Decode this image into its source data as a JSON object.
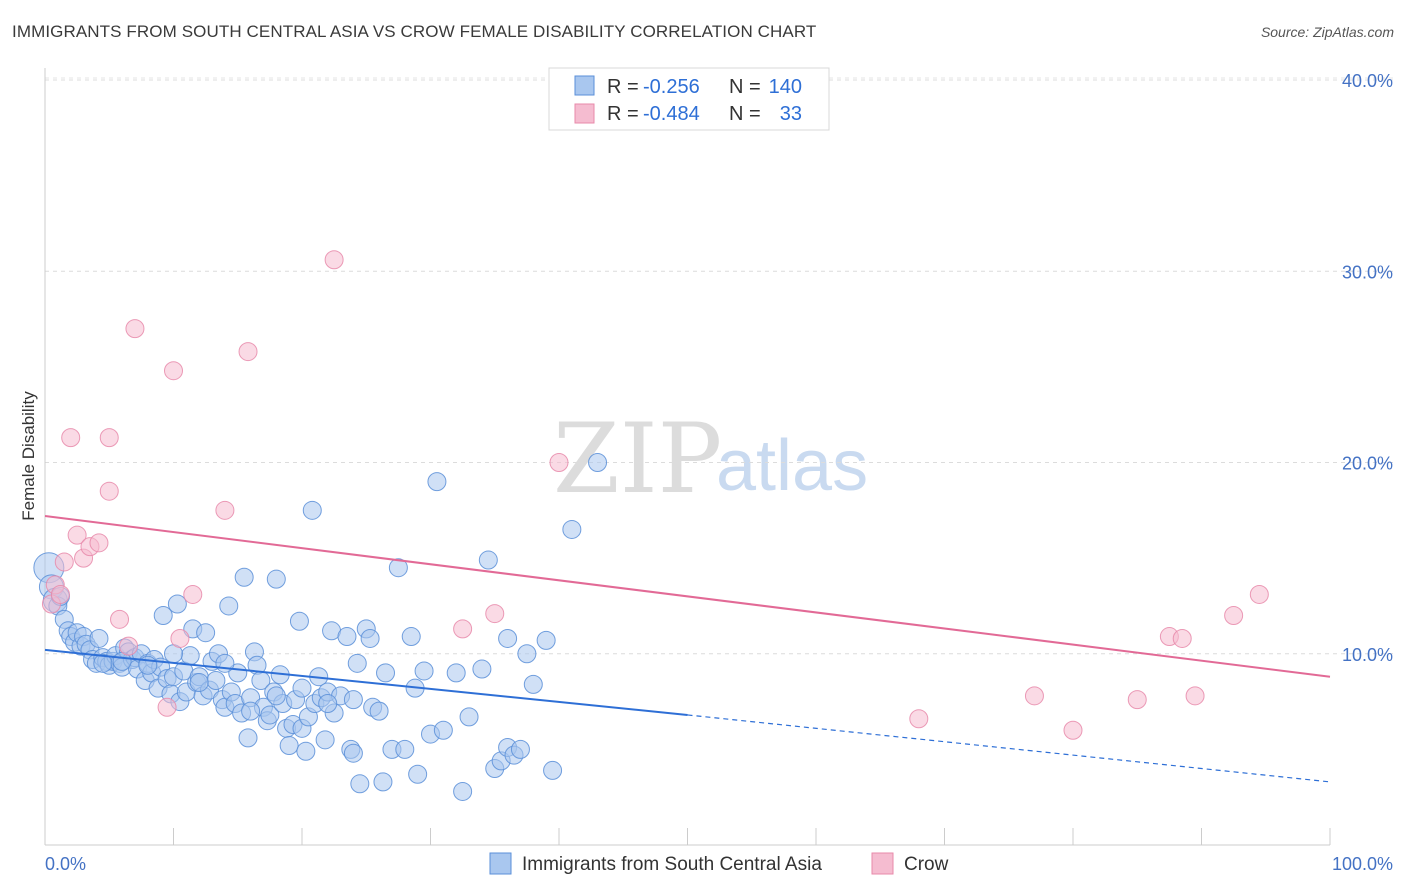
{
  "header": {
    "title": "IMMIGRANTS FROM SOUTH CENTRAL ASIA VS CROW FEMALE DISABILITY CORRELATION CHART",
    "source": "Source: ZipAtlas.com"
  },
  "watermark": {
    "zip": "ZIP",
    "atlas": "atlas"
  },
  "legend": {
    "rows": [
      {
        "r_label": "R =",
        "r_value": "-0.256",
        "n_label": "N =",
        "n_value": "140"
      },
      {
        "r_label": "R =",
        "r_value": "-0.484",
        "n_label": "N =",
        "n_value": "33"
      }
    ]
  },
  "colors": {
    "blue_fill": "#a9c7ef",
    "blue_stroke": "#5a8fd8",
    "blue_line": "#2e6fd6",
    "pink_fill": "#f5bcd0",
    "pink_stroke": "#e88aaa",
    "pink_line": "#e26a96"
  },
  "chart_data": {
    "type": "scatter",
    "title": "IMMIGRANTS FROM SOUTH CENTRAL ASIA VS CROW FEMALE DISABILITY CORRELATION CHART",
    "xlabel": "",
    "ylabel": "Female Disability",
    "xlim": [
      0,
      100
    ],
    "ylim": [
      0,
      40
    ],
    "x_tick_labels": [
      "0.0%",
      "100.0%"
    ],
    "y_ticks": [
      10,
      20,
      30,
      40
    ],
    "y_tick_labels": [
      "10.0%",
      "20.0%",
      "30.0%",
      "40.0%"
    ],
    "grid": true,
    "legend_position": "top-center",
    "series": [
      {
        "name": "Immigrants from South Central Asia",
        "R": -0.256,
        "N": 140,
        "trend": {
          "x": [
            0,
            50
          ],
          "y": [
            10.2,
            6.8
          ],
          "dashed_to": [
            100,
            3.3
          ]
        },
        "points": [
          [
            0.3,
            14.5
          ],
          [
            0.5,
            13.5
          ],
          [
            0.8,
            12.8
          ],
          [
            1.0,
            12.5
          ],
          [
            1.2,
            13.0
          ],
          [
            1.5,
            11.8
          ],
          [
            1.8,
            11.2
          ],
          [
            2.0,
            10.9
          ],
          [
            2.3,
            10.6
          ],
          [
            2.5,
            11.1
          ],
          [
            2.8,
            10.4
          ],
          [
            3.0,
            10.9
          ],
          [
            3.2,
            10.5
          ],
          [
            3.5,
            10.2
          ],
          [
            3.7,
            9.7
          ],
          [
            4.0,
            9.5
          ],
          [
            4.2,
            10.8
          ],
          [
            4.5,
            9.8
          ],
          [
            4.8,
            9.6
          ],
          [
            5.0,
            9.4
          ],
          [
            5.3,
            9.6
          ],
          [
            5.5,
            9.9
          ],
          [
            5.8,
            9.5
          ],
          [
            6.0,
            9.3
          ],
          [
            6.2,
            10.3
          ],
          [
            6.5,
            10.1
          ],
          [
            6.8,
            9.7
          ],
          [
            7.0,
            9.8
          ],
          [
            7.2,
            9.2
          ],
          [
            7.5,
            10.0
          ],
          [
            7.8,
            8.6
          ],
          [
            8.0,
            9.5
          ],
          [
            8.3,
            9.0
          ],
          [
            8.5,
            9.7
          ],
          [
            8.8,
            8.2
          ],
          [
            9.0,
            9.3
          ],
          [
            9.2,
            12.0
          ],
          [
            9.5,
            8.7
          ],
          [
            9.8,
            7.9
          ],
          [
            10.0,
            8.8
          ],
          [
            10.3,
            12.6
          ],
          [
            10.5,
            7.5
          ],
          [
            10.8,
            9.1
          ],
          [
            11.0,
            8.0
          ],
          [
            11.3,
            9.9
          ],
          [
            11.5,
            11.3
          ],
          [
            11.8,
            8.5
          ],
          [
            12.0,
            8.8
          ],
          [
            12.3,
            7.8
          ],
          [
            12.5,
            11.1
          ],
          [
            12.8,
            8.1
          ],
          [
            13.0,
            9.6
          ],
          [
            13.3,
            8.6
          ],
          [
            13.5,
            10.0
          ],
          [
            13.8,
            7.6
          ],
          [
            14.0,
            7.2
          ],
          [
            14.3,
            12.5
          ],
          [
            14.5,
            8.0
          ],
          [
            14.8,
            7.4
          ],
          [
            15.0,
            9.0
          ],
          [
            15.3,
            6.9
          ],
          [
            15.5,
            14.0
          ],
          [
            15.8,
            5.6
          ],
          [
            16.0,
            7.7
          ],
          [
            16.3,
            10.1
          ],
          [
            16.5,
            9.4
          ],
          [
            16.8,
            8.6
          ],
          [
            17.0,
            7.2
          ],
          [
            17.3,
            6.5
          ],
          [
            17.5,
            6.8
          ],
          [
            17.8,
            8.0
          ],
          [
            18.0,
            13.9
          ],
          [
            18.3,
            8.9
          ],
          [
            18.5,
            7.4
          ],
          [
            18.8,
            6.1
          ],
          [
            19.0,
            5.2
          ],
          [
            19.3,
            6.3
          ],
          [
            19.5,
            7.6
          ],
          [
            19.8,
            11.7
          ],
          [
            20.0,
            6.1
          ],
          [
            20.3,
            4.9
          ],
          [
            20.5,
            6.7
          ],
          [
            20.8,
            17.5
          ],
          [
            21.0,
            7.4
          ],
          [
            21.3,
            8.8
          ],
          [
            21.5,
            7.7
          ],
          [
            21.8,
            5.5
          ],
          [
            22.0,
            8.0
          ],
          [
            22.3,
            11.2
          ],
          [
            22.5,
            6.9
          ],
          [
            23.0,
            7.8
          ],
          [
            23.5,
            10.9
          ],
          [
            23.8,
            5.0
          ],
          [
            24.0,
            4.8
          ],
          [
            24.3,
            9.5
          ],
          [
            24.5,
            3.2
          ],
          [
            25.0,
            11.3
          ],
          [
            25.3,
            10.8
          ],
          [
            25.5,
            7.2
          ],
          [
            26.0,
            7.0
          ],
          [
            26.3,
            3.3
          ],
          [
            26.5,
            9.0
          ],
          [
            27.0,
            5.0
          ],
          [
            27.5,
            14.5
          ],
          [
            28.0,
            5.0
          ],
          [
            28.5,
            10.9
          ],
          [
            28.8,
            8.2
          ],
          [
            29.0,
            3.7
          ],
          [
            29.5,
            9.1
          ],
          [
            30.0,
            5.8
          ],
          [
            30.5,
            19.0
          ],
          [
            31.0,
            6.0
          ],
          [
            32.0,
            9.0
          ],
          [
            32.5,
            2.8
          ],
          [
            33.0,
            6.7
          ],
          [
            34.0,
            9.2
          ],
          [
            34.5,
            14.9
          ],
          [
            35.0,
            4.0
          ],
          [
            35.5,
            4.4
          ],
          [
            36.0,
            5.1
          ],
          [
            36.5,
            4.7
          ],
          [
            37.0,
            5.0
          ],
          [
            37.5,
            10.0
          ],
          [
            38.0,
            8.4
          ],
          [
            39.0,
            10.7
          ],
          [
            39.5,
            3.9
          ],
          [
            41.0,
            16.5
          ],
          [
            43.0,
            20.0
          ],
          [
            4.5,
            9.5
          ],
          [
            6.0,
            9.6
          ],
          [
            8.0,
            9.4
          ],
          [
            10.0,
            10.0
          ],
          [
            12.0,
            8.5
          ],
          [
            14.0,
            9.5
          ],
          [
            16.0,
            7.0
          ],
          [
            18.0,
            7.8
          ],
          [
            20.0,
            8.2
          ],
          [
            22.0,
            7.4
          ],
          [
            24.0,
            7.6
          ],
          [
            36.0,
            10.8
          ]
        ]
      },
      {
        "name": "Crow",
        "R": -0.484,
        "N": 33,
        "trend": {
          "x": [
            0,
            100
          ],
          "y": [
            17.2,
            8.8
          ]
        },
        "points": [
          [
            0.5,
            12.6
          ],
          [
            0.8,
            13.6
          ],
          [
            1.2,
            13.1
          ],
          [
            1.5,
            14.8
          ],
          [
            2.0,
            21.3
          ],
          [
            2.5,
            16.2
          ],
          [
            3.0,
            15.0
          ],
          [
            3.5,
            15.6
          ],
          [
            4.2,
            15.8
          ],
          [
            5.0,
            18.5
          ],
          [
            5.0,
            21.3
          ],
          [
            5.8,
            11.8
          ],
          [
            6.5,
            10.4
          ],
          [
            7.0,
            27.0
          ],
          [
            9.5,
            7.2
          ],
          [
            10.0,
            24.8
          ],
          [
            10.5,
            10.8
          ],
          [
            11.5,
            13.1
          ],
          [
            14.0,
            17.5
          ],
          [
            15.8,
            25.8
          ],
          [
            22.5,
            30.6
          ],
          [
            32.5,
            11.3
          ],
          [
            35.0,
            12.1
          ],
          [
            40.0,
            20.0
          ],
          [
            68.0,
            6.6
          ],
          [
            77.0,
            7.8
          ],
          [
            80.0,
            6.0
          ],
          [
            85.0,
            7.6
          ],
          [
            87.5,
            10.9
          ],
          [
            88.5,
            10.8
          ],
          [
            89.5,
            7.8
          ],
          [
            92.5,
            12.0
          ],
          [
            94.5,
            13.1
          ]
        ]
      }
    ]
  }
}
